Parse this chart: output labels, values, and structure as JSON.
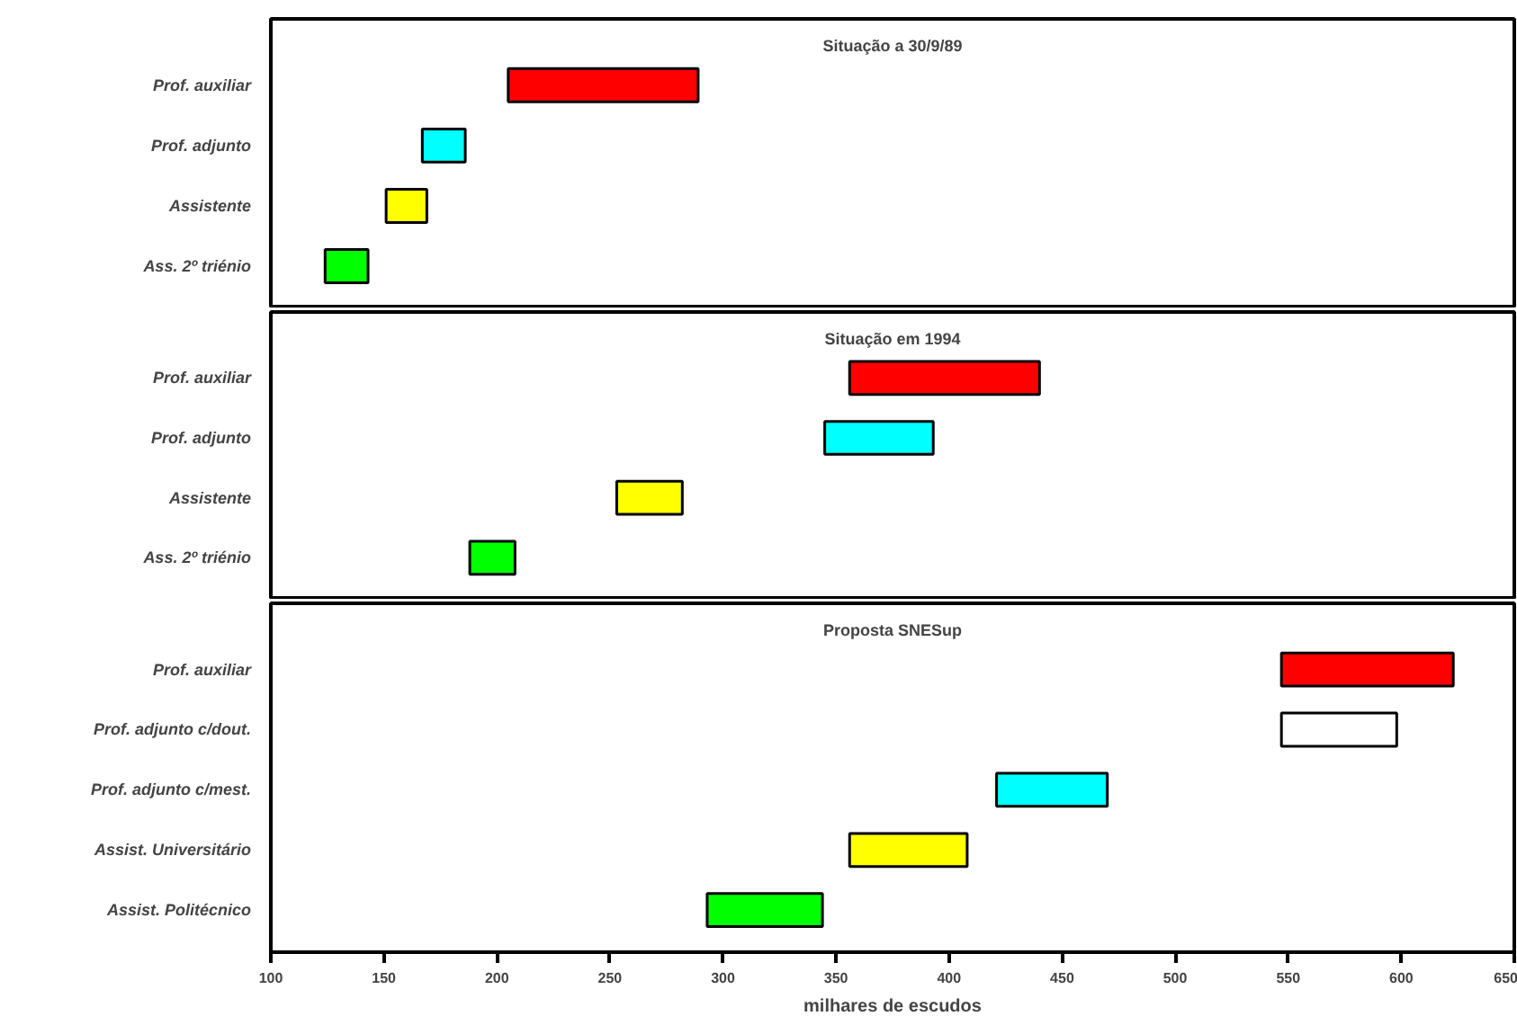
{
  "chart_data": [
    {
      "type": "bar",
      "orientation": "horizontal",
      "title": "Situação a 30/9/89",
      "categories": [
        "Prof. auxiliar",
        "Prof. adjunto",
        "Assistente",
        "Ass. 2º triénio"
      ],
      "base": [
        205,
        167,
        151,
        124
      ],
      "values": [
        84,
        19,
        18,
        19
      ],
      "colors": [
        "#ff0000",
        "#00ffff",
        "#ffff00",
        "#00ff00"
      ],
      "xlim": [
        100,
        650
      ],
      "xticks": [
        100,
        150,
        200,
        250,
        300,
        350,
        400,
        450,
        500,
        550,
        600,
        650
      ],
      "tick_labels": "y"
    },
    {
      "type": "bar",
      "orientation": "horizontal",
      "title": "Situação em 1994",
      "categories": [
        "Prof. auxiliar",
        "Prof. adjunto",
        "Assistente",
        "Ass. 2º triénio"
      ],
      "base": [
        356,
        345,
        253,
        188
      ],
      "values": [
        84,
        48,
        29,
        20
      ],
      "colors": [
        "#ff0000",
        "#00ffff",
        "#ffff00",
        "#00ff00"
      ],
      "xlim": [
        100,
        650
      ],
      "xticks": [
        100,
        150,
        200,
        250,
        300,
        350,
        400,
        450,
        500,
        550,
        600,
        650
      ],
      "tick_labels": "y"
    },
    {
      "type": "bar",
      "orientation": "horizontal",
      "title": "Proposta SNESup",
      "xlabel": "milhares de escudos",
      "categories": [
        "Prof. auxiliar",
        "Prof. adjunto c/dout.",
        "Prof. adjunto c/mest.",
        "Assist. Universitário",
        "Assist. Politécnico"
      ],
      "base": [
        547,
        547,
        421,
        356,
        293
      ],
      "values": [
        76,
        51,
        49,
        52,
        51
      ],
      "colors": [
        "#ff0000",
        "#ffffff",
        "#00ffff",
        "#ffff00",
        "#00ff00"
      ],
      "xlim": [
        100,
        650
      ],
      "xticks": [
        100,
        150,
        200,
        250,
        300,
        350,
        400,
        450,
        500,
        550,
        600,
        650
      ]
    }
  ]
}
